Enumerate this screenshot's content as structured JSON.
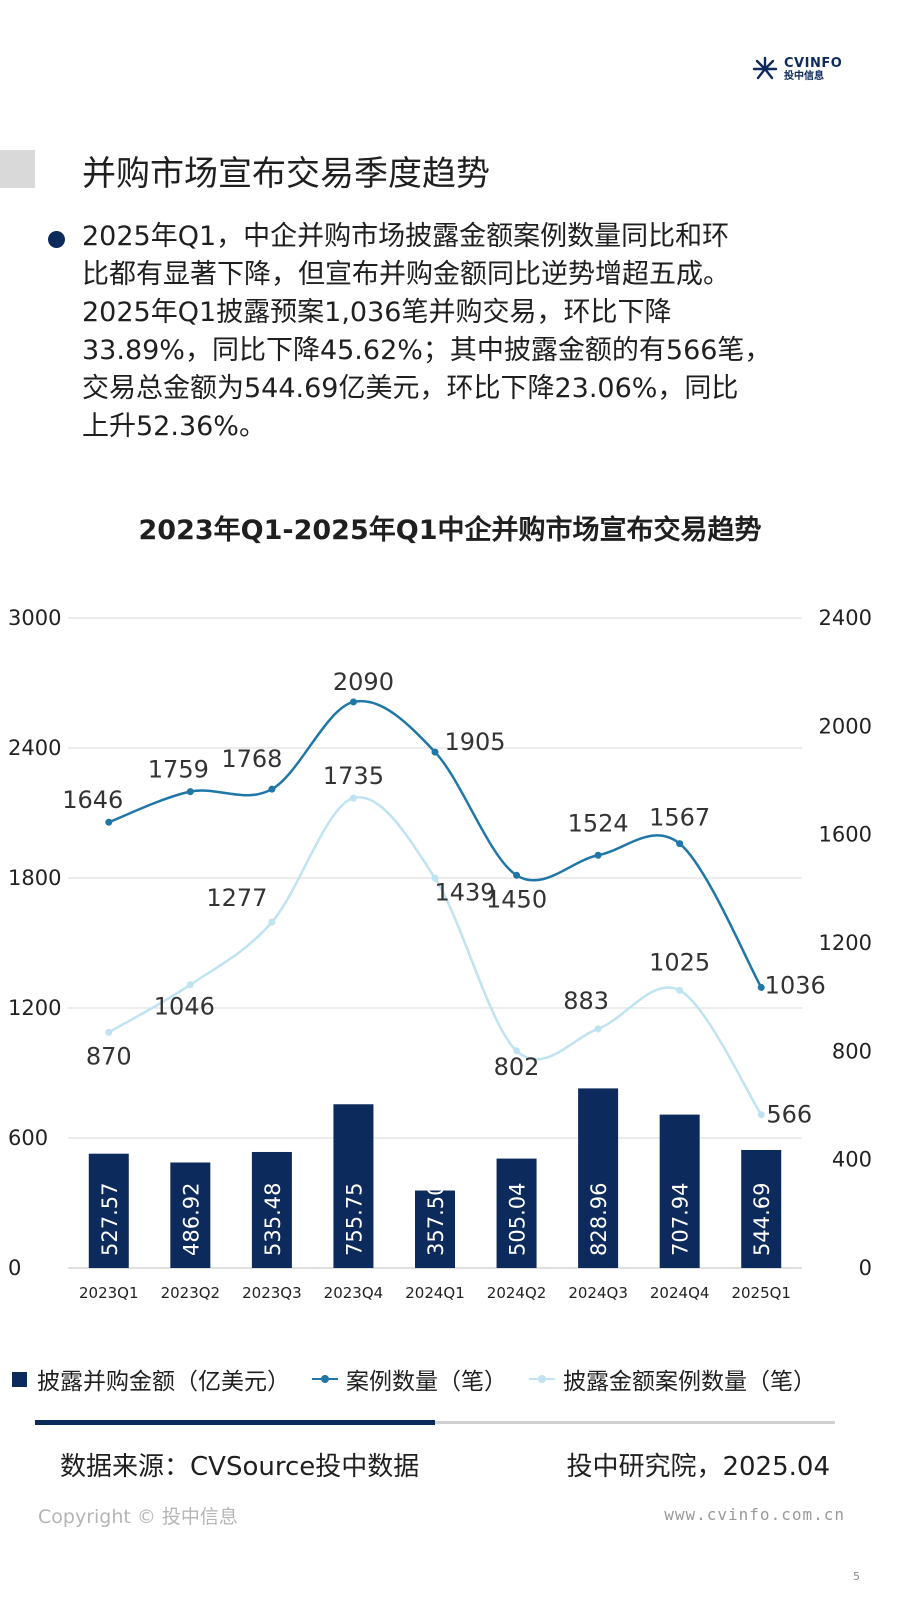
{
  "logo": {
    "brand": "CVINFO",
    "sub": "投中信息"
  },
  "page_title": "并购市场宣布交易季度趋势",
  "bullet_lines": [
    "2025年Q1，中企并购市场披露金额案例数量同比和环",
    "比都有显著下降，但宣布并购金额同比逆势增超五成。",
    "2025年Q1披露预案1,036笔并购交易，环比下降",
    "33.89%，同比下降45.62%；其中披露金额的有566笔，",
    "交易总金额为544.69亿美元，环比下降23.06%，同比",
    "上升52.36%。"
  ],
  "colors": {
    "bar": "#0d2a5c",
    "case_line": "#1f77a8",
    "disclosed_line": "#bfe3f0",
    "grid": "#d9d9d9"
  },
  "chart_data": {
    "type": "bar",
    "title": "2023年Q1-2025年Q1中企并购市场宣布交易趋势",
    "categories": [
      "2023Q1",
      "2023Q2",
      "2023Q3",
      "2023Q4",
      "2024Q1",
      "2024Q2",
      "2024Q3",
      "2024Q4",
      "2025Q1"
    ],
    "y_left": {
      "min": 0,
      "max": 3000,
      "ticks": [
        "0",
        "600",
        "1200",
        "1800",
        "2400",
        "3000"
      ]
    },
    "y_right": {
      "min": 0,
      "max": 2400,
      "ticks": [
        "0",
        "400",
        "800",
        "1200",
        "1600",
        "2000",
        "2400"
      ]
    },
    "grid": true,
    "legend_position": "bottom",
    "series": [
      {
        "name": "披露并购金额（亿美元）",
        "kind": "bar",
        "axis": "left",
        "values": [
          527.57,
          486.92,
          535.48,
          755.75,
          357.5,
          505.04,
          828.96,
          707.94,
          544.69
        ],
        "labels": [
          "527.57",
          "486.92",
          "535.48",
          "755.75",
          "357.50",
          "505.04",
          "828.96",
          "707.94",
          "544.69"
        ]
      },
      {
        "name": "案例数量（笔）",
        "kind": "line",
        "axis": "right",
        "values": [
          1646,
          1759,
          1768,
          2090,
          1905,
          1450,
          1524,
          1567,
          1036
        ],
        "labels": [
          "1646",
          "1759",
          "1768",
          "2090",
          "1905",
          "1450",
          "1524",
          "1567",
          "1036"
        ]
      },
      {
        "name": "披露金额案例数量（笔）",
        "kind": "line",
        "axis": "right",
        "values": [
          870,
          1046,
          1277,
          1735,
          1439,
          802,
          883,
          1025,
          566
        ],
        "labels": [
          "870",
          "1046",
          "1277",
          "1735",
          "1439",
          "802",
          "883",
          "1025",
          "566"
        ]
      }
    ]
  },
  "footer": {
    "source": "数据来源：CVSource投中数据",
    "org": "投中研究院，2025.04",
    "copyright": "Copyright © 投中信息",
    "website": "www.cvinfo.com.cn",
    "page_number": "5"
  }
}
